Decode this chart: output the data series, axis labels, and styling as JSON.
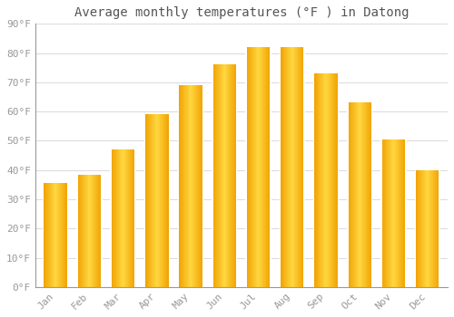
{
  "title": "Average monthly temperatures (°F ) in Datong",
  "months": [
    "Jan",
    "Feb",
    "Mar",
    "Apr",
    "May",
    "Jun",
    "Jul",
    "Aug",
    "Sep",
    "Oct",
    "Nov",
    "Dec"
  ],
  "values": [
    35.5,
    38.3,
    47.0,
    59.0,
    69.0,
    76.0,
    82.0,
    82.0,
    73.0,
    63.0,
    50.5,
    40.0
  ],
  "bar_color_left": "#F5A800",
  "bar_color_center": "#FFD740",
  "bar_color_right": "#F5A800",
  "background_color": "#FFFFFF",
  "plot_bg_color": "#FFFFFF",
  "grid_color": "#DDDDDD",
  "ylim": [
    0,
    90
  ],
  "yticks": [
    0,
    10,
    20,
    30,
    40,
    50,
    60,
    70,
    80,
    90
  ],
  "ytick_labels": [
    "0°F",
    "10°F",
    "20°F",
    "30°F",
    "40°F",
    "50°F",
    "60°F",
    "70°F",
    "80°F",
    "90°F"
  ],
  "title_fontsize": 10,
  "tick_fontsize": 8,
  "tick_color": "#999999",
  "title_color": "#555555",
  "figsize": [
    5.0,
    3.5
  ],
  "dpi": 100,
  "bar_width": 0.72
}
